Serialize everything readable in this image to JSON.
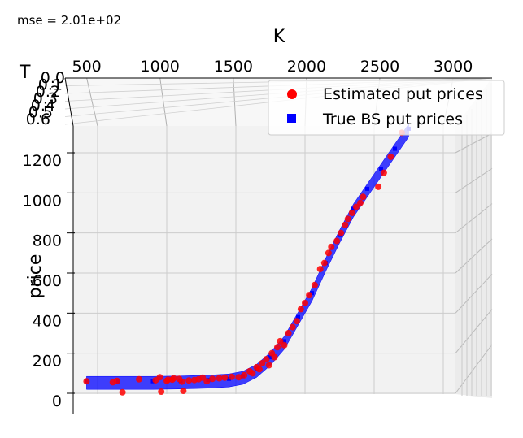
{
  "annotation": "mse = 2.01e+02",
  "chart_data": {
    "type": "scatter",
    "projection": "3d",
    "xlabel": "K",
    "ylabel": "T",
    "zlabel": "price",
    "xticks": [
      "500",
      "1000",
      "1500",
      "2000",
      "2500",
      "3000"
    ],
    "yticks": [
      "0.0",
      "0.1",
      "0.2",
      "0.3",
      "0.4",
      "0.5",
      "0.6"
    ],
    "zticks": [
      "0",
      "200",
      "400",
      "600",
      "800",
      "1000",
      "1200"
    ],
    "xlim": [
      300,
      3000
    ],
    "zlim": [
      -50,
      1350
    ],
    "grid": true,
    "legend_position": "top-right",
    "colors": {
      "estimated": "#ff0000",
      "true": "#0000ff"
    },
    "legend": [
      {
        "label": "Estimated put prices",
        "marker": "circle",
        "color": "#ff0000"
      },
      {
        "label": "True BS put prices",
        "marker": "square",
        "color": "#0000ff"
      }
    ],
    "series": [
      {
        "name": "Estimated put prices",
        "marker": "circle",
        "color": "#ff0000",
        "points": [
          [
            420,
            60
          ],
          [
            610,
            55
          ],
          [
            640,
            62
          ],
          [
            680,
            5
          ],
          [
            800,
            70
          ],
          [
            920,
            65
          ],
          [
            950,
            80
          ],
          [
            960,
            8
          ],
          [
            1000,
            62
          ],
          [
            1010,
            68
          ],
          [
            1040,
            68
          ],
          [
            1050,
            75
          ],
          [
            1090,
            72
          ],
          [
            1110,
            58
          ],
          [
            1120,
            12
          ],
          [
            1160,
            64
          ],
          [
            1200,
            66
          ],
          [
            1230,
            70
          ],
          [
            1260,
            78
          ],
          [
            1290,
            60
          ],
          [
            1330,
            72
          ],
          [
            1380,
            75
          ],
          [
            1420,
            78
          ],
          [
            1470,
            82
          ],
          [
            1520,
            80
          ],
          [
            1560,
            90
          ],
          [
            1600,
            110
          ],
          [
            1620,
            100
          ],
          [
            1650,
            130
          ],
          [
            1670,
            120
          ],
          [
            1690,
            150
          ],
          [
            1720,
            170
          ],
          [
            1740,
            140
          ],
          [
            1760,
            200
          ],
          [
            1780,
            180
          ],
          [
            1800,
            230
          ],
          [
            1820,
            260
          ],
          [
            1850,
            240
          ],
          [
            1880,
            300
          ],
          [
            1910,
            330
          ],
          [
            1940,
            360
          ],
          [
            1970,
            420
          ],
          [
            2000,
            450
          ],
          [
            2030,
            490
          ],
          [
            2070,
            540
          ],
          [
            2110,
            620
          ],
          [
            2140,
            650
          ],
          [
            2170,
            700
          ],
          [
            2190,
            730
          ],
          [
            2230,
            760
          ],
          [
            2260,
            800
          ],
          [
            2290,
            840
          ],
          [
            2310,
            870
          ],
          [
            2340,
            900
          ],
          [
            2370,
            930
          ],
          [
            2400,
            950
          ],
          [
            2420,
            980
          ],
          [
            2530,
            1030
          ],
          [
            2570,
            1100
          ],
          [
            2620,
            1180
          ],
          [
            2700,
            1300
          ]
        ]
      },
      {
        "name": "True BS put prices",
        "marker": "square",
        "color": "#0000ff",
        "points": [
          [
            420,
            60
          ],
          [
            650,
            60
          ],
          [
            900,
            60
          ],
          [
            1100,
            62
          ],
          [
            1300,
            66
          ],
          [
            1450,
            72
          ],
          [
            1550,
            85
          ],
          [
            1650,
            120
          ],
          [
            1750,
            180
          ],
          [
            1850,
            260
          ],
          [
            1950,
            380
          ],
          [
            2050,
            500
          ],
          [
            2150,
            650
          ],
          [
            2250,
            790
          ],
          [
            2350,
            920
          ],
          [
            2450,
            1020
          ],
          [
            2550,
            1120
          ],
          [
            2650,
            1220
          ],
          [
            2750,
            1320
          ]
        ]
      }
    ]
  }
}
